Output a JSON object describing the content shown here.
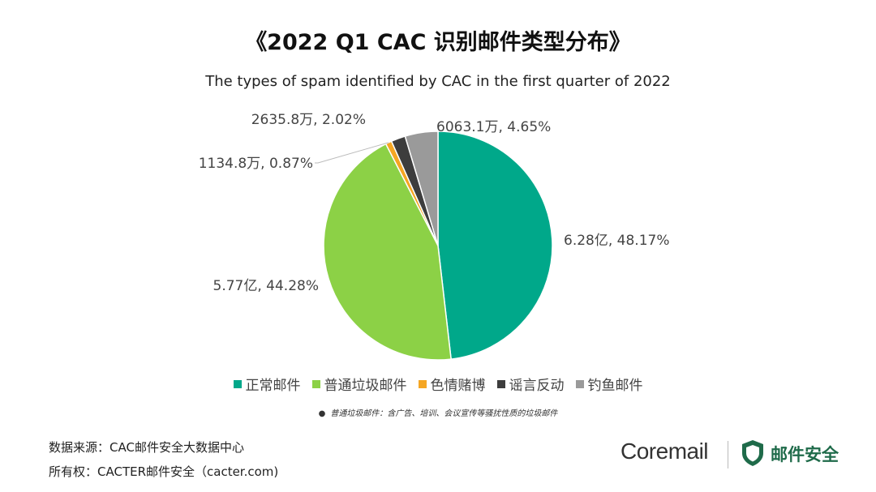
{
  "title": "《2022 Q1 CAC 识别邮件类型分布》",
  "subtitle": "The types of spam identified by CAC in the first quarter of 2022",
  "chart_data": {
    "type": "pie",
    "title": "《2022 Q1 CAC 识别邮件类型分布》",
    "subtitle": "The types of spam identified by CAC in the first quarter of 2022",
    "slices": [
      {
        "name": "正常邮件",
        "value_label": "6.28亿",
        "percent": 48.17,
        "label": "6.28亿, 48.17%",
        "color": "#00a88a"
      },
      {
        "name": "普通垃圾邮件",
        "value_label": "5.77亿",
        "percent": 44.28,
        "label": "5.77亿, 44.28%",
        "color": "#8cd146"
      },
      {
        "name": "色情赌博",
        "value_label": "1134.8万",
        "percent": 0.87,
        "label": "1134.8万, 0.87%",
        "color": "#f5a623"
      },
      {
        "name": "谣言反动",
        "value_label": "2635.8万",
        "percent": 2.02,
        "label": "2635.8万, 2.02%",
        "color": "#3d3d3d"
      },
      {
        "name": "钓鱼邮件",
        "value_label": "6063.1万",
        "percent": 4.65,
        "label": "6063.1万, 4.65%",
        "color": "#9a9a9a"
      }
    ],
    "legend_position": "bottom"
  },
  "footnote": "普通垃圾邮件：含广告、培训、会议宣传等骚扰性质的垃圾邮件",
  "source": "数据来源：CAC邮件安全大数据中心",
  "copyright": "所有权：CACTER邮件安全（cacter.com)",
  "brand": {
    "name": "Coremail",
    "cn": "邮件安全",
    "logo_icon": "shield-icon"
  }
}
